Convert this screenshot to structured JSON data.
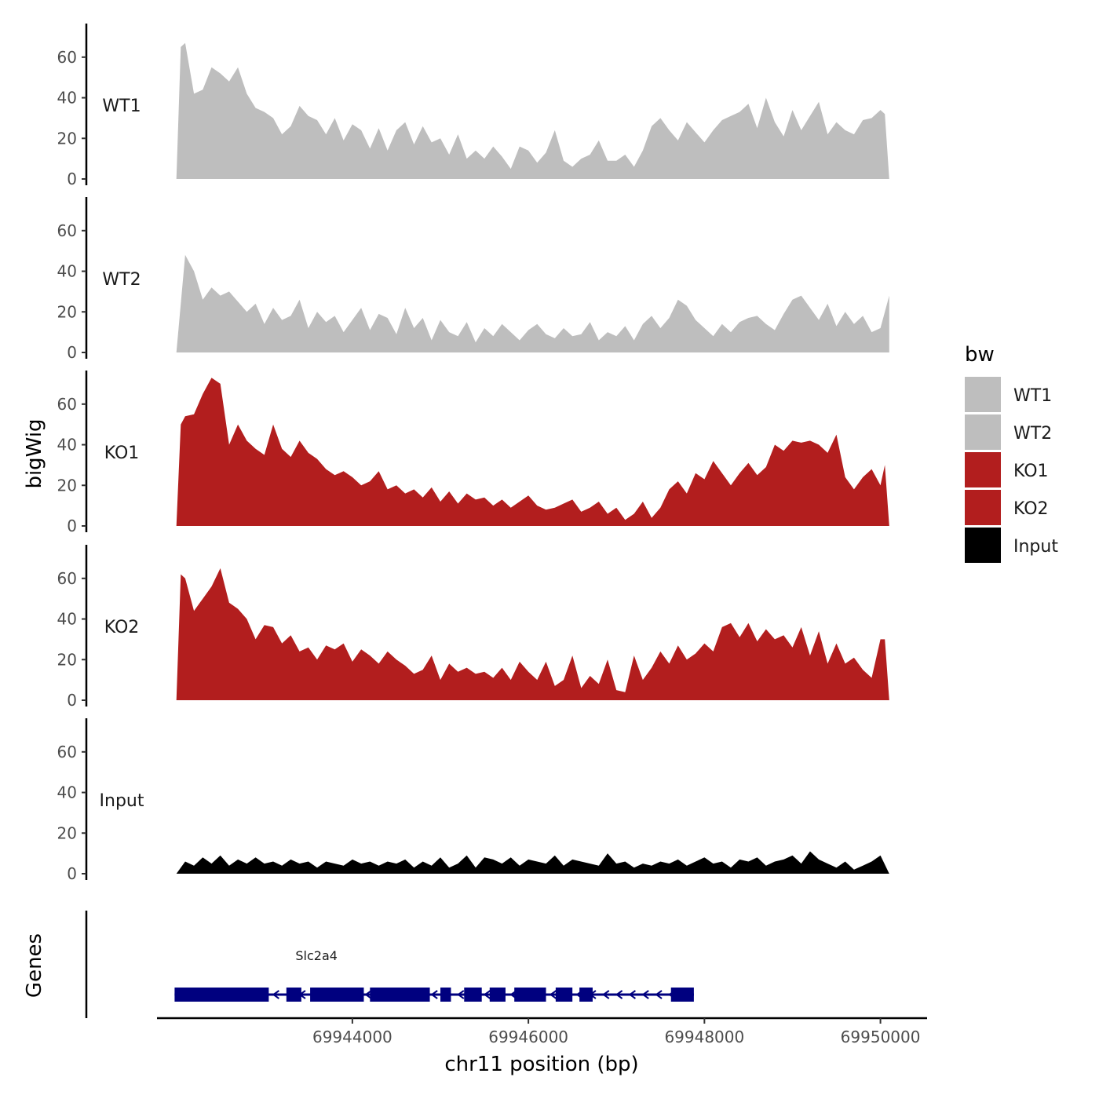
{
  "chart_data": {
    "type": "area",
    "ylabel": "bigWig",
    "xlabel": "chr11 position (bp)",
    "genes_label": "Genes",
    "legend_title": "bw",
    "legend_position": "right",
    "grid": false,
    "ylim": [
      0,
      75
    ],
    "yticks": [
      0,
      20,
      40,
      60
    ],
    "xlim": [
      69941780,
      69950530
    ],
    "xticks": [
      69944000,
      69946000,
      69948000,
      69950000
    ],
    "xtick_labels": [
      "69944000",
      "69946000",
      "69948000",
      "69950000"
    ],
    "colors": {
      "WT1": "#bebebe",
      "WT2": "#bebebe",
      "KO1": "#b21e1e",
      "KO2": "#b21e1e",
      "Input": "#000000",
      "gene": "#00007f"
    },
    "series": [
      {
        "name": "WT1",
        "x": [
          69942000,
          69942050,
          69942100,
          69942200,
          69942300,
          69942400,
          69942500,
          69942600,
          69942700,
          69942800,
          69942900,
          69943000,
          69943100,
          69943200,
          69943300,
          69943400,
          69943500,
          69943600,
          69943700,
          69943800,
          69943900,
          69944000,
          69944100,
          69944200,
          69944300,
          69944400,
          69944500,
          69944600,
          69944700,
          69944800,
          69944900,
          69945000,
          69945100,
          69945200,
          69945300,
          69945400,
          69945500,
          69945600,
          69945700,
          69945800,
          69945900,
          69946000,
          69946100,
          69946200,
          69946300,
          69946400,
          69946500,
          69946600,
          69946700,
          69946800,
          69946900,
          69947000,
          69947100,
          69947200,
          69947300,
          69947400,
          69947500,
          69947600,
          69947700,
          69947800,
          69947900,
          69948000,
          69948100,
          69948200,
          69948300,
          69948400,
          69948500,
          69948600,
          69948700,
          69948800,
          69948900,
          69949000,
          69949100,
          69949200,
          69949300,
          69949400,
          69949500,
          69949600,
          69949700,
          69949800,
          69949900,
          69950000,
          69950050,
          69950100
        ],
        "values": [
          0,
          65,
          67,
          42,
          44,
          55,
          52,
          48,
          55,
          42,
          35,
          33,
          30,
          22,
          26,
          36,
          31,
          29,
          22,
          30,
          19,
          27,
          24,
          15,
          25,
          14,
          24,
          28,
          17,
          26,
          18,
          20,
          12,
          22,
          10,
          14,
          10,
          16,
          11,
          5,
          16,
          14,
          8,
          13,
          24,
          9,
          6,
          10,
          12,
          19,
          9,
          9,
          12,
          6,
          14,
          26,
          30,
          24,
          19,
          28,
          23,
          18,
          24,
          29,
          31,
          33,
          37,
          25,
          40,
          28,
          21,
          34,
          24,
          31,
          38,
          22,
          28,
          24,
          22,
          29,
          30,
          34,
          32,
          0
        ]
      },
      {
        "name": "WT2",
        "x": [
          69942000,
          69942100,
          69942200,
          69942300,
          69942400,
          69942500,
          69942600,
          69942700,
          69942800,
          69942900,
          69943000,
          69943100,
          69943200,
          69943300,
          69943400,
          69943500,
          69943600,
          69943700,
          69943800,
          69943900,
          69944000,
          69944100,
          69944200,
          69944300,
          69944400,
          69944500,
          69944600,
          69944700,
          69944800,
          69944900,
          69945000,
          69945100,
          69945200,
          69945300,
          69945400,
          69945500,
          69945600,
          69945700,
          69945800,
          69945900,
          69946000,
          69946100,
          69946200,
          69946300,
          69946400,
          69946500,
          69946600,
          69946700,
          69946800,
          69946900,
          69947000,
          69947100,
          69947200,
          69947300,
          69947400,
          69947500,
          69947600,
          69947700,
          69947800,
          69947900,
          69948000,
          69948100,
          69948200,
          69948300,
          69948400,
          69948500,
          69948600,
          69948700,
          69948800,
          69948900,
          69949000,
          69949100,
          69949200,
          69949300,
          69949400,
          69949500,
          69949600,
          69949700,
          69949800,
          69949900,
          69950000,
          69950100
        ],
        "values": [
          0,
          48,
          40,
          26,
          32,
          28,
          30,
          25,
          20,
          24,
          14,
          22,
          16,
          18,
          26,
          12,
          20,
          15,
          18,
          10,
          16,
          22,
          11,
          19,
          17,
          9,
          22,
          12,
          17,
          6,
          16,
          10,
          8,
          15,
          5,
          12,
          8,
          14,
          10,
          6,
          11,
          14,
          9,
          7,
          12,
          8,
          9,
          15,
          6,
          10,
          8,
          13,
          6,
          14,
          18,
          12,
          17,
          26,
          23,
          16,
          12,
          8,
          14,
          10,
          15,
          17,
          18,
          14,
          11,
          19,
          26,
          28,
          22,
          16,
          24,
          13,
          20,
          14,
          18,
          10,
          12,
          28
        ]
      },
      {
        "name": "KO1",
        "x": [
          69942000,
          69942050,
          69942100,
          69942200,
          69942300,
          69942400,
          69942500,
          69942600,
          69942700,
          69942800,
          69942900,
          69943000,
          69943100,
          69943200,
          69943300,
          69943400,
          69943500,
          69943600,
          69943700,
          69943800,
          69943900,
          69944000,
          69944100,
          69944200,
          69944300,
          69944400,
          69944500,
          69944600,
          69944700,
          69944800,
          69944900,
          69945000,
          69945100,
          69945200,
          69945300,
          69945400,
          69945500,
          69945600,
          69945700,
          69945800,
          69945900,
          69946000,
          69946100,
          69946200,
          69946300,
          69946400,
          69946500,
          69946600,
          69946700,
          69946800,
          69946900,
          69947000,
          69947100,
          69947200,
          69947300,
          69947400,
          69947500,
          69947600,
          69947700,
          69947800,
          69947900,
          69948000,
          69948100,
          69948200,
          69948300,
          69948400,
          69948500,
          69948600,
          69948700,
          69948800,
          69948900,
          69949000,
          69949100,
          69949200,
          69949300,
          69949400,
          69949500,
          69949600,
          69949700,
          69949800,
          69949900,
          69950000,
          69950050,
          69950100
        ],
        "values": [
          0,
          50,
          54,
          55,
          65,
          73,
          70,
          40,
          50,
          42,
          38,
          35,
          50,
          38,
          34,
          42,
          36,
          33,
          28,
          25,
          27,
          24,
          20,
          22,
          27,
          18,
          20,
          16,
          18,
          14,
          19,
          12,
          17,
          11,
          16,
          13,
          14,
          10,
          13,
          9,
          12,
          15,
          10,
          8,
          9,
          11,
          13,
          7,
          9,
          12,
          6,
          9,
          3,
          6,
          12,
          4,
          9,
          18,
          22,
          16,
          26,
          23,
          32,
          26,
          20,
          26,
          31,
          25,
          29,
          40,
          37,
          42,
          41,
          42,
          40,
          36,
          45,
          24,
          18,
          24,
          28,
          20,
          30,
          0
        ]
      },
      {
        "name": "KO2",
        "x": [
          69942000,
          69942050,
          69942100,
          69942200,
          69942300,
          69942400,
          69942500,
          69942600,
          69942700,
          69942800,
          69942900,
          69943000,
          69943100,
          69943200,
          69943300,
          69943400,
          69943500,
          69943600,
          69943700,
          69943800,
          69943900,
          69944000,
          69944100,
          69944200,
          69944300,
          69944400,
          69944500,
          69944600,
          69944700,
          69944800,
          69944900,
          69945000,
          69945100,
          69945200,
          69945300,
          69945400,
          69945500,
          69945600,
          69945700,
          69945800,
          69945900,
          69946000,
          69946100,
          69946200,
          69946300,
          69946400,
          69946500,
          69946600,
          69946700,
          69946800,
          69946900,
          69947000,
          69947100,
          69947200,
          69947300,
          69947400,
          69947500,
          69947600,
          69947700,
          69947800,
          69947900,
          69948000,
          69948100,
          69948200,
          69948300,
          69948400,
          69948500,
          69948600,
          69948700,
          69948800,
          69948900,
          69949000,
          69949100,
          69949200,
          69949300,
          69949400,
          69949500,
          69949600,
          69949700,
          69949800,
          69949900,
          69950000,
          69950050,
          69950100
        ],
        "values": [
          0,
          62,
          60,
          44,
          50,
          56,
          65,
          48,
          45,
          40,
          30,
          37,
          36,
          28,
          32,
          24,
          26,
          20,
          27,
          25,
          28,
          19,
          25,
          22,
          18,
          24,
          20,
          17,
          13,
          15,
          22,
          10,
          18,
          14,
          16,
          13,
          14,
          11,
          16,
          10,
          19,
          14,
          10,
          19,
          7,
          10,
          22,
          6,
          12,
          8,
          20,
          5,
          4,
          22,
          10,
          16,
          24,
          18,
          27,
          20,
          23,
          28,
          24,
          36,
          38,
          31,
          38,
          29,
          35,
          30,
          32,
          26,
          36,
          22,
          34,
          18,
          28,
          18,
          21,
          15,
          11,
          30,
          30,
          0
        ]
      },
      {
        "name": "Input",
        "x": [
          69942000,
          69942100,
          69942200,
          69942300,
          69942400,
          69942500,
          69942600,
          69942700,
          69942800,
          69942900,
          69943000,
          69943100,
          69943200,
          69943300,
          69943400,
          69943500,
          69943600,
          69943700,
          69943800,
          69943900,
          69944000,
          69944100,
          69944200,
          69944300,
          69944400,
          69944500,
          69944600,
          69944700,
          69944800,
          69944900,
          69945000,
          69945100,
          69945200,
          69945300,
          69945400,
          69945500,
          69945600,
          69945700,
          69945800,
          69945900,
          69946000,
          69946100,
          69946200,
          69946300,
          69946400,
          69946500,
          69946600,
          69946700,
          69946800,
          69946900,
          69947000,
          69947100,
          69947200,
          69947300,
          69947400,
          69947500,
          69947600,
          69947700,
          69947800,
          69947900,
          69948000,
          69948100,
          69948200,
          69948300,
          69948400,
          69948500,
          69948600,
          69948700,
          69948800,
          69948900,
          69949000,
          69949100,
          69949200,
          69949300,
          69949400,
          69949500,
          69949600,
          69949700,
          69949800,
          69949900,
          69950000,
          69950100
        ],
        "values": [
          0,
          6,
          4,
          8,
          5,
          9,
          4,
          7,
          5,
          8,
          5,
          6,
          4,
          7,
          5,
          6,
          3,
          6,
          5,
          4,
          7,
          5,
          6,
          4,
          6,
          5,
          7,
          3,
          6,
          4,
          8,
          3,
          5,
          9,
          3,
          8,
          7,
          5,
          8,
          4,
          7,
          6,
          5,
          9,
          4,
          7,
          6,
          5,
          4,
          10,
          5,
          6,
          3,
          5,
          4,
          6,
          5,
          7,
          4,
          6,
          8,
          5,
          6,
          3,
          7,
          6,
          8,
          4,
          6,
          7,
          9,
          5,
          11,
          7,
          5,
          3,
          6,
          2,
          4,
          6,
          9,
          0
        ]
      }
    ],
    "genes": [
      {
        "name": "Slc2a4",
        "strand": "-",
        "start": 69941980,
        "end": 69947880,
        "exons": [
          [
            69941980,
            69943050
          ],
          [
            69943250,
            69943420
          ],
          [
            69943520,
            69944130
          ],
          [
            69944200,
            69944880
          ],
          [
            69945000,
            69945120
          ],
          [
            69945270,
            69945470
          ],
          [
            69945560,
            69945740
          ],
          [
            69945840,
            69946200
          ],
          [
            69946310,
            69946500
          ],
          [
            69946580,
            69946730
          ],
          [
            69947620,
            69947880
          ]
        ]
      }
    ]
  }
}
